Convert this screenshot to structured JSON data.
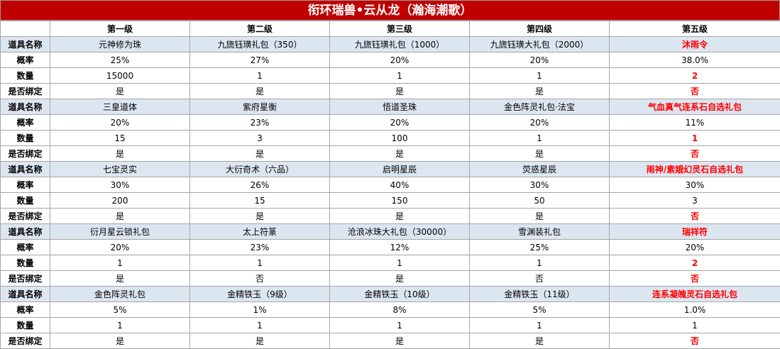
{
  "title": "衔环瑞兽•云从龙（瀚海潮歌）",
  "headers": [
    "",
    "第一级",
    "第二级",
    "第三级",
    "第四级",
    "第五级"
  ],
  "row_labels": {
    "name": "道具名称",
    "rate": "概率",
    "qty": "数量",
    "bind": "是否绑定"
  },
  "groups": [
    {
      "name": [
        "元神修为珠",
        "九旒钰璜礼包（350）",
        "九旒钰璜礼包（1000）",
        "九旒钰璜大礼包（2000）",
        "沐雨令"
      ],
      "rate": [
        "25%",
        "27%",
        "20%",
        "20%",
        "38.0%"
      ],
      "qty": [
        "15000",
        "1",
        "1",
        "1",
        "2"
      ],
      "bind": [
        "是",
        "是",
        "是",
        "是",
        "否"
      ]
    },
    {
      "name": [
        "三皇道体",
        "紫府星衡",
        "悟道圣珠",
        "金色阵灵礼包·法宝",
        "气血真气连系石自选礼包"
      ],
      "rate": [
        "20%",
        "23%",
        "20%",
        "20%",
        "11%"
      ],
      "qty": [
        "15",
        "3",
        "100",
        "1",
        "1"
      ],
      "bind": [
        "是",
        "是",
        "是",
        "是",
        "否"
      ]
    },
    {
      "name": [
        "七宝灵实",
        "大衍奇术（六品）",
        "启明星辰",
        "荧惑星辰",
        "雨神/素娥幻灵石自选礼包"
      ],
      "rate": [
        "30%",
        "26%",
        "40%",
        "30%",
        "30%"
      ],
      "qty": [
        "200",
        "15",
        "150",
        "50",
        "3"
      ],
      "bind": [
        "是",
        "是",
        "是",
        "是",
        "否"
      ]
    },
    {
      "name": [
        "衍月星云锁礼包",
        "太上符篆",
        "沧浪冰珠大礼包（30000）",
        "雪渊装礼包",
        "瑞祥符"
      ],
      "rate": [
        "20%",
        "23%",
        "12%",
        "25%",
        "20%"
      ],
      "qty": [
        "1",
        "1",
        "1",
        "1",
        "2"
      ],
      "bind": [
        "是",
        "否",
        "是",
        "否",
        "否"
      ]
    },
    {
      "name": [
        "金色阵灵礼包",
        "金精铁玉（9级）",
        "金精铁玉（10级）",
        "金精铁玉（11级）",
        "连系凝魄灵石自选礼包"
      ],
      "rate": [
        "5%",
        "1%",
        "8%",
        "5%",
        "1.0%"
      ],
      "qty": [
        "1",
        "1",
        "1",
        "1",
        "1"
      ],
      "bind": [
        "是",
        "是",
        "是",
        "是",
        "否"
      ]
    }
  ],
  "colors": {
    "title_bg": "#c00000",
    "name_row_bg": "#dce6f1",
    "highlight": "#ff0000"
  }
}
